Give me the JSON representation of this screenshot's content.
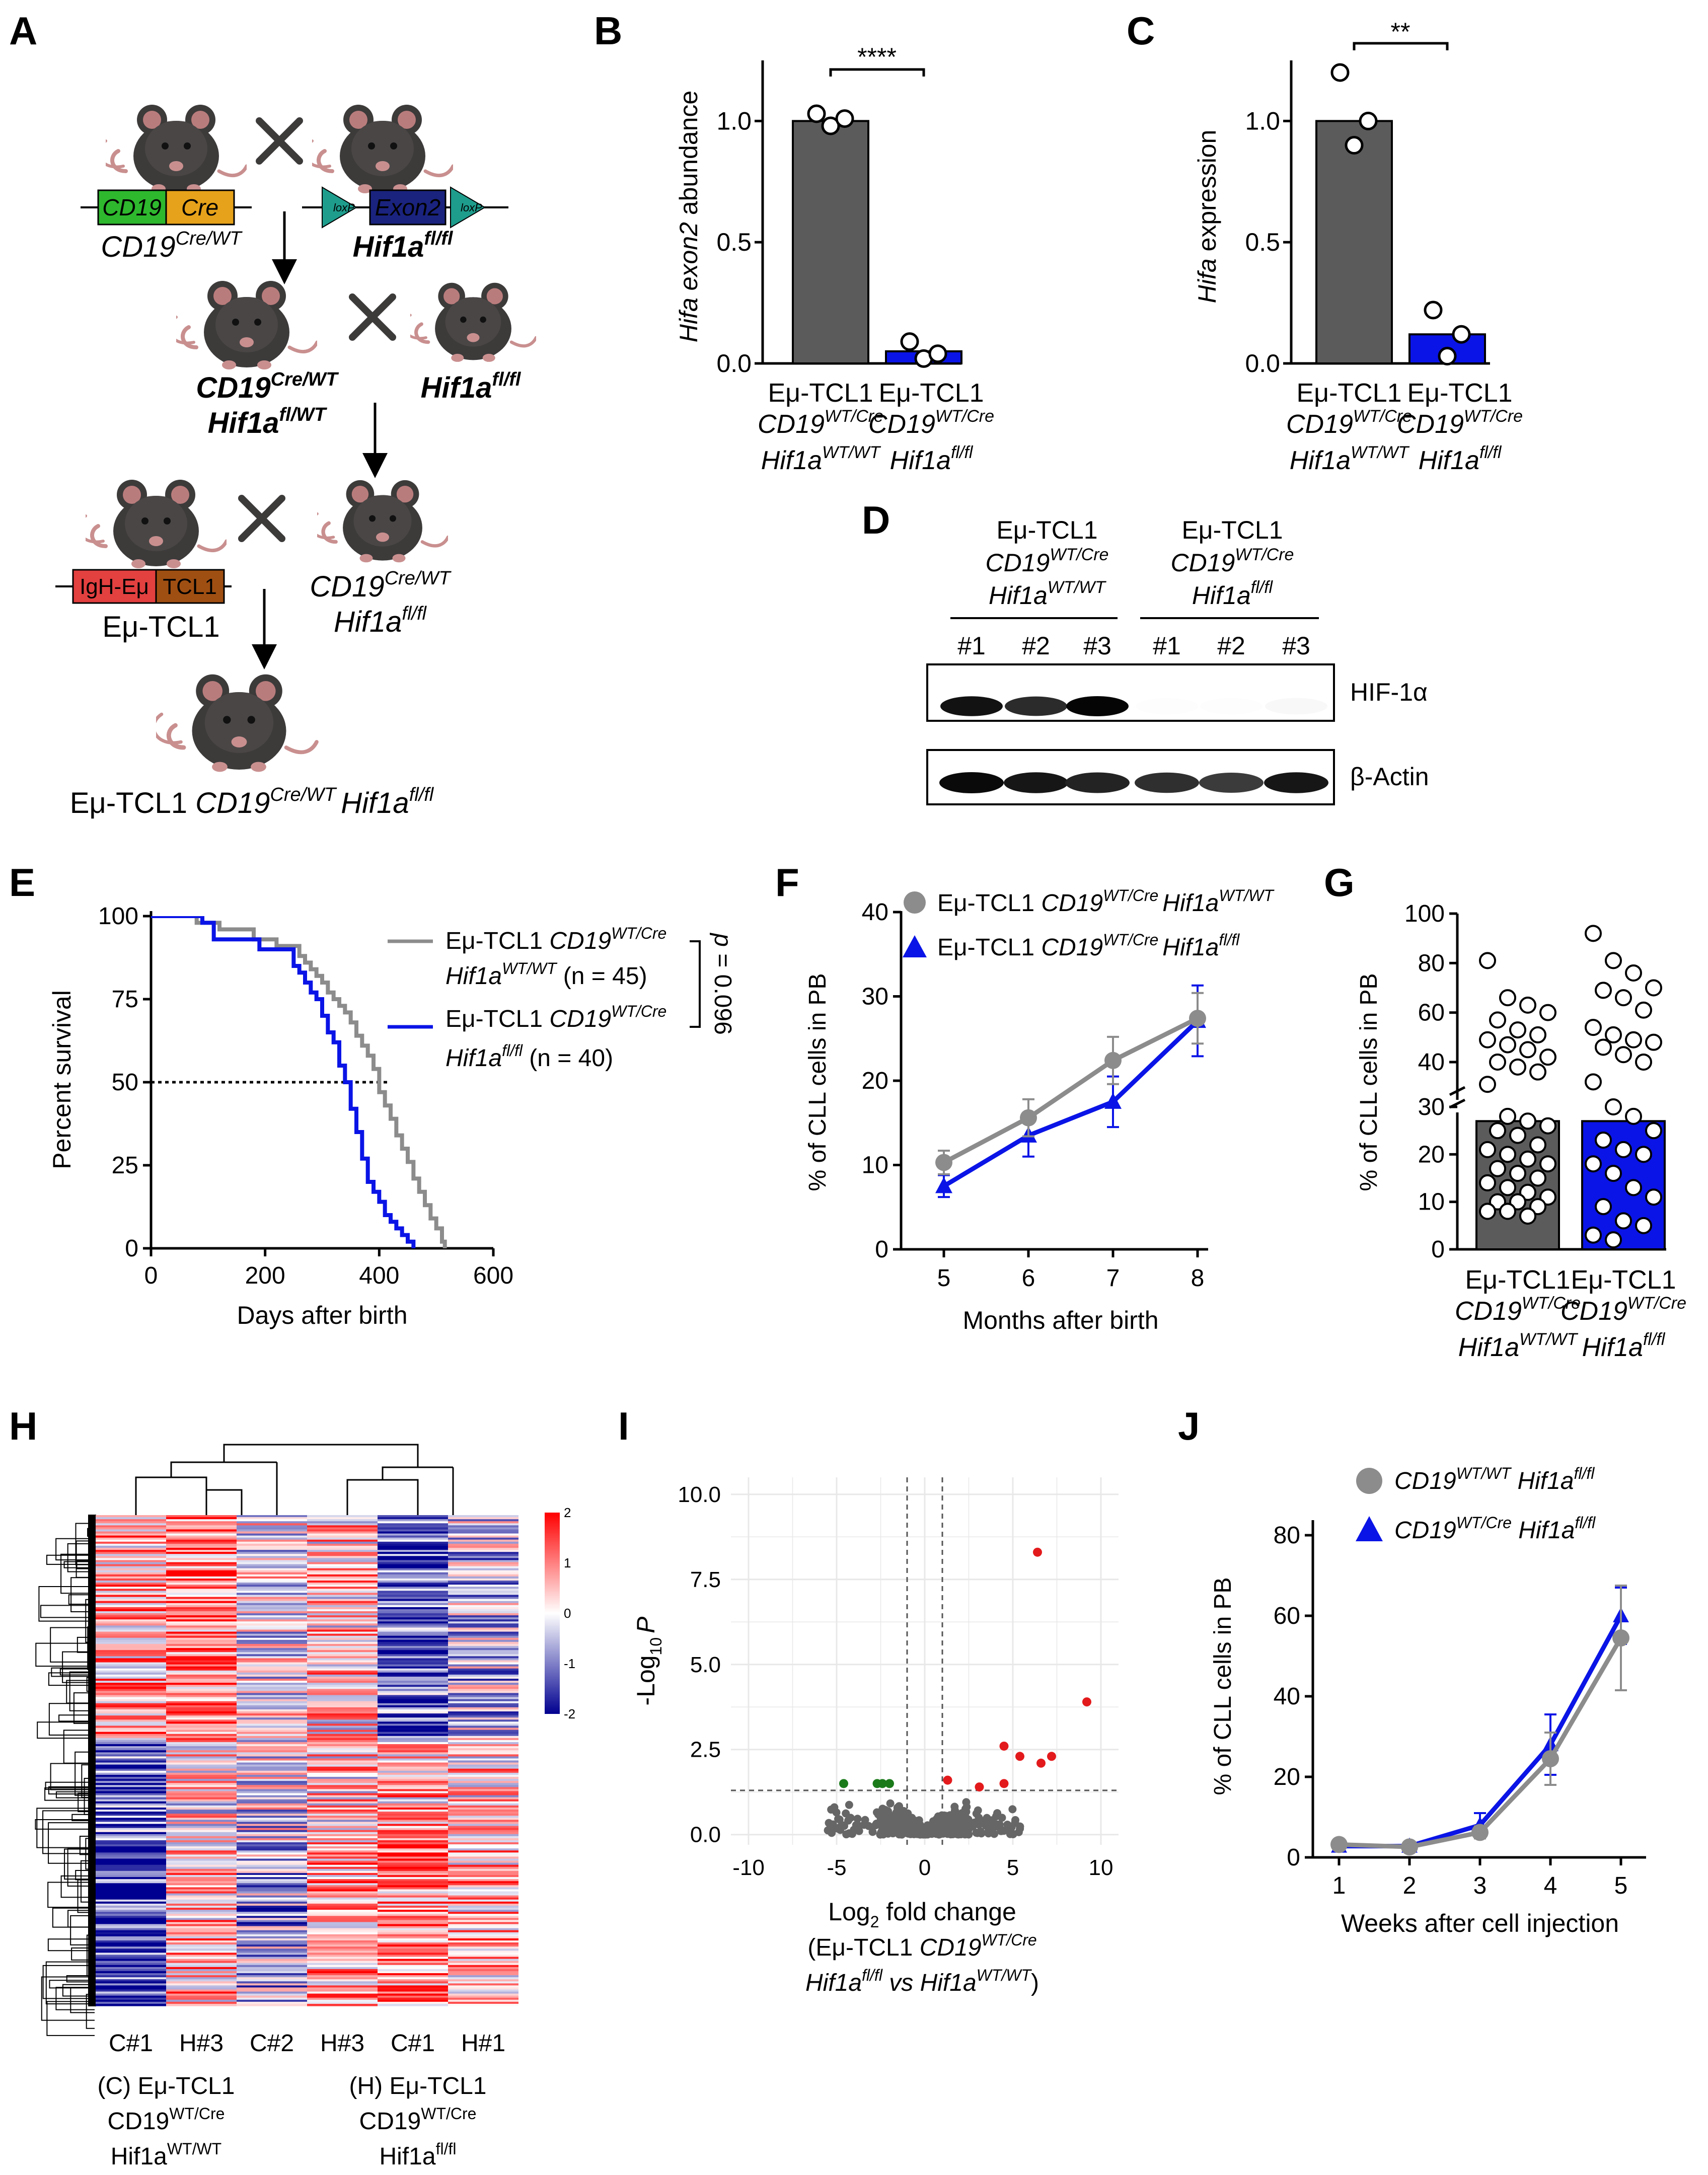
{
  "colors": {
    "wt_gray": "#8c8c8c",
    "ko_blue": "#0a14e6",
    "dark_bar": "#5b5b5b",
    "sig_red": "#e31a1c",
    "sig_green": "#1a7a1a",
    "mouse": "#3d3a3a"
  },
  "panel_letters": [
    "A",
    "B",
    "C",
    "D",
    "E",
    "F",
    "G",
    "H",
    "I",
    "J"
  ],
  "panelA": {
    "cd19_box": "CD19",
    "cre_box": "Cre",
    "loxp": "loxP",
    "exon2_box": "Exon2",
    "igh_box": "IgH-Eμ",
    "tcl1_box": "TCL1",
    "gen1_left_base": "CD19",
    "gen1_left_sup": "Cre/WT",
    "gen1_right_base": "Hif1a",
    "gen1_right_sup": "fl/fl",
    "gen2_left1_base": "CD19",
    "gen2_left1_sup": "Cre/WT",
    "gen2_left2_base": "Hif1a",
    "gen2_left2_sup": "fl/WT",
    "gen2_right_base": "Hif1a",
    "gen2_right_sup": "fl/fl",
    "gen3_left": "Eμ-TCL1",
    "gen3_right1_base": "CD19",
    "gen3_right1_sup": "Cre/WT",
    "gen3_right2_base": "Hif1a",
    "gen3_right2_sup": "fl/fl",
    "final_prefix": "Eμ-TCL1 ",
    "final_cd19": "CD19",
    "final_cd19_sup": "Cre/WT",
    "final_hif": "Hif1a",
    "final_hif_sup": "fl/fl"
  },
  "groups": {
    "tcl1": "Eμ-TCL1",
    "cd19": "CD19",
    "cd19_sup": "WT/Cre",
    "hif": "Hif1a",
    "wt_sup": "WT/WT",
    "ko_sup": "fl/fl"
  },
  "panelB": {
    "ylabel_italic": "Hifa exon2",
    "ylabel_rest": " abundance",
    "yticks": [
      "0.0",
      "0.5",
      "1.0"
    ],
    "sig": "****",
    "chart_data": {
      "type": "bar",
      "categories": [
        "Eμ-TCL1 CD19WT/Cre Hif1aWT/WT",
        "Eμ-TCL1 CD19WT/Cre Hif1afl/fl"
      ],
      "values": [
        1.0,
        0.05
      ],
      "points": [
        [
          1.03,
          0.98,
          1.01
        ],
        [
          0.09,
          0.02,
          0.04
        ]
      ],
      "ylim": [
        0,
        1.25
      ]
    }
  },
  "panelC": {
    "ylabel_italic": "Hifa",
    "ylabel_rest": " expression",
    "yticks": [
      "0.0",
      "0.5",
      "1.0"
    ],
    "sig": "**",
    "chart_data": {
      "type": "bar",
      "categories": [
        "Eμ-TCL1 CD19WT/Cre Hif1aWT/WT",
        "Eμ-TCL1 CD19WT/Cre Hif1afl/fl"
      ],
      "values": [
        1.0,
        0.12
      ],
      "points": [
        [
          1.2,
          0.9,
          1.0
        ],
        [
          0.22,
          0.03,
          0.12
        ]
      ],
      "ylim": [
        0,
        1.25
      ]
    }
  },
  "panelD": {
    "lanes": [
      "#1",
      "#2",
      "#3",
      "#1",
      "#2",
      "#3"
    ],
    "blot1_label": "HIF-1α",
    "blot2_label": "β-Actin",
    "hif_intensity": [
      0.95,
      0.85,
      1.0,
      0.03,
      0.02,
      0.08
    ],
    "actin_intensity": [
      1.0,
      0.95,
      0.9,
      0.85,
      0.8,
      0.95
    ]
  },
  "panelE": {
    "ylabel": "Percent survival",
    "xlabel": "Days after birth",
    "yticks": [
      "0",
      "25",
      "50",
      "75",
      "100"
    ],
    "xticks": [
      "0",
      "200",
      "400",
      "600"
    ],
    "legend1_prefix": "Eμ-TCL1 ",
    "legend1_cd19": "CD19",
    "legend1_cd19_sup": "WT/Cre",
    "legend1_hif": "Hif1a",
    "legend1_hif_sup": "WT/WT",
    "legend1_n": " (n = 45)",
    "legend2_prefix": "Eμ-TCL1 ",
    "legend2_cd19": "CD19",
    "legend2_cd19_sup": "WT/Cre",
    "legend2_hif": "Hif1a",
    "legend2_hif_sup": "fl/fl",
    "legend2_n": " (n = 40)",
    "pvalue_p": "p",
    "pvalue_rest": " = 0.096",
    "chart_data": {
      "type": "line",
      "xlim": [
        0,
        600
      ],
      "ylim": [
        0,
        100
      ],
      "series": [
        {
          "name": "Eμ-TCL1 CD19WT/Cre Hif1aWT/WT (n = 45)",
          "x": [
            0,
            80,
            120,
            150,
            180,
            200,
            220,
            240,
            260,
            270,
            280,
            290,
            300,
            310,
            320,
            330,
            340,
            350,
            360,
            370,
            380,
            390,
            400,
            410,
            420,
            430,
            440,
            450,
            460,
            470,
            480,
            490,
            500,
            510,
            515
          ],
          "y": [
            100,
            98,
            96,
            96,
            93,
            93,
            91,
            91,
            88,
            86,
            84,
            82,
            80,
            77,
            75,
            73,
            71,
            68,
            64,
            61,
            58,
            54,
            47,
            43,
            39,
            34,
            30,
            26,
            21,
            17,
            13,
            9,
            6,
            2,
            0
          ]
        },
        {
          "name": "Eμ-TCL1 CD19WT/Cre Hif1afl/fl (n = 40)",
          "x": [
            0,
            90,
            110,
            170,
            190,
            230,
            250,
            260,
            270,
            280,
            290,
            300,
            310,
            320,
            330,
            340,
            350,
            360,
            370,
            380,
            390,
            400,
            410,
            420,
            430,
            440,
            450,
            460
          ],
          "y": [
            100,
            98,
            93,
            93,
            90,
            90,
            85,
            83,
            80,
            77,
            75,
            70,
            65,
            62,
            55,
            50,
            42,
            35,
            27,
            20,
            17,
            14,
            10,
            8,
            6,
            4,
            2,
            0
          ]
        }
      ]
    }
  },
  "panelF": {
    "ylabel": "% of CLL cells in PB",
    "xlabel": "Months after birth",
    "yticks": [
      "0",
      "10",
      "20",
      "30",
      "40"
    ],
    "xticks": [
      "5",
      "6",
      "7",
      "8"
    ],
    "legend1_prefix": "Eμ-TCL1 ",
    "legend1_cd19": "CD19",
    "legend1_cd19_sup": "WT/Cre",
    "legend1_hif": "Hif1a",
    "legend1_hif_sup": "WT/WT",
    "legend2_prefix": "Eμ-TCL1 ",
    "legend2_cd19": "CD19",
    "legend2_cd19_sup": "WT/Cre",
    "legend2_hif": "Hif1a",
    "legend2_hif_sup": "fl/fl",
    "chart_data": {
      "type": "line",
      "x": [
        5,
        6,
        7,
        8
      ],
      "ylim": [
        0,
        40
      ],
      "series": [
        {
          "name": "Eμ-TCL1 CD19WT/Cre Hif1aWT/WT",
          "values": [
            10.3,
            15.6,
            22.4,
            27.4
          ],
          "err": [
            1.4,
            2.2,
            2.8,
            3.0
          ]
        },
        {
          "name": "Eμ-TCL1 CD19WT/Cre Hif1afl/fl",
          "values": [
            7.5,
            13.5,
            17.5,
            27.1
          ],
          "err": [
            1.3,
            2.5,
            3.0,
            4.2
          ]
        }
      ]
    }
  },
  "panelG": {
    "ylabel": "% of CLL cells in PB",
    "yticks_low": [
      "0",
      "10",
      "20",
      "30"
    ],
    "yticks_high": [
      "40",
      "60",
      "80",
      "100"
    ],
    "chart_data": {
      "type": "bar",
      "categories": [
        "Eμ-TCL1 CD19WT/Cre Hif1aWT/WT",
        "Eμ-TCL1 CD19WT/Cre Hif1afl/fl"
      ],
      "values": [
        27,
        27
      ],
      "points": [
        [
          81,
          66,
          63,
          60,
          57,
          53,
          51,
          49,
          47,
          45,
          42,
          40,
          38,
          36,
          31,
          28,
          27,
          26,
          25,
          24,
          22,
          21,
          20,
          19,
          18,
          17,
          16,
          15,
          14,
          13,
          12,
          11,
          10,
          10,
          9,
          8,
          8,
          7
        ],
        [
          92,
          81,
          76,
          70,
          69,
          66,
          61,
          54,
          51,
          49,
          48,
          46,
          43,
          40,
          32,
          30,
          28,
          25,
          23,
          21,
          20,
          18,
          16,
          13,
          11,
          9,
          6,
          5,
          3,
          2
        ]
      ],
      "ylim": [
        0,
        100
      ],
      "axis_break": [
        30,
        35
      ]
    }
  },
  "panelH": {
    "columns": [
      "C#1",
      "H#3",
      "C#2",
      "H#3",
      "C#1",
      "H#1"
    ],
    "scale_ticks": [
      "2",
      "1",
      "0",
      "-1",
      "-2"
    ],
    "groupC_prefix": "(C) Eμ-TCL1",
    "groupC_cd19": "CD19",
    "groupC_cd19_sup": "WT/Cre",
    "groupC_hif": "Hif1a",
    "groupC_hif_sup": "WT/WT",
    "groupH_prefix": "(H) Eμ-TCL1",
    "groupH_cd19": "CD19",
    "groupH_cd19_sup": "WT/Cre",
    "groupH_hif": "Hif1a",
    "groupH_hif_sup": "fl/fl",
    "chart_data": {
      "type": "heatmap",
      "columns": [
        "C#1",
        "H#3",
        "C#2",
        "H#3",
        "C#1",
        "H#1"
      ],
      "zlim": [
        -2,
        2
      ]
    }
  },
  "panelI": {
    "ylabel_pre": "-Log",
    "ylabel_sub": "10",
    "ylabel_p": "P",
    "xlabel_pre": "Log",
    "xlabel_sub": "2",
    "xlabel_rest": " fold change",
    "xlabel2_pre": "(Eμ-TCL1 ",
    "xlabel2_cd19": "CD19",
    "xlabel2_cd19_sup": "WT/Cre",
    "xlabel3_hif": "Hif1a",
    "xlabel3_hif_sup": "fl/fl",
    "xlabel3_vs": " vs ",
    "xlabel3_hif2": "Hif1a",
    "xlabel3_hif2_sup": "WT/WT",
    "xlabel3_close": ")",
    "yticks": [
      "0.0",
      "2.5",
      "5.0",
      "7.5",
      "10.0"
    ],
    "xticks": [
      "-10",
      "-5",
      "0",
      "5",
      "10"
    ],
    "chart_data": {
      "type": "scatter",
      "xlim": [
        -11,
        11
      ],
      "ylim": [
        -0.3,
        10.5
      ],
      "thresholds": {
        "x": [
          -1,
          1
        ],
        "y": 1.3
      },
      "red_points": [
        [
          6.4,
          8.3
        ],
        [
          9.2,
          3.9
        ],
        [
          4.5,
          2.6
        ],
        [
          5.4,
          2.3
        ],
        [
          6.6,
          2.1
        ],
        [
          7.2,
          2.3
        ],
        [
          1.3,
          1.6
        ],
        [
          3.1,
          1.4
        ],
        [
          4.5,
          1.5
        ]
      ],
      "green_points": [
        [
          -4.6,
          1.5
        ],
        [
          -2.7,
          1.5
        ],
        [
          -2.4,
          1.5
        ],
        [
          -2.0,
          1.5
        ]
      ]
    }
  },
  "panelJ": {
    "ylabel": "% of CLL cells in PB",
    "xlabel": "Weeks after cell injection",
    "yticks": [
      "0",
      "20",
      "40",
      "60",
      "80"
    ],
    "xticks": [
      "1",
      "2",
      "3",
      "4",
      "5"
    ],
    "legend1_cd19": "CD19",
    "legend1_cd19_sup": "WT/WT",
    "legend1_hif": " Hif1a",
    "legend1_hif_sup": "fl/fl",
    "legend2_cd19": "CD19",
    "legend2_cd19_sup": "WT/Cre",
    "legend2_hif": " Hif1a",
    "legend2_hif_sup": "fl/fl",
    "chart_data": {
      "type": "line",
      "x": [
        1,
        2,
        3,
        4,
        5
      ],
      "ylim": [
        0,
        80
      ],
      "series": [
        {
          "name": "CD19WT/WT Hif1afl/fl",
          "values": [
            3.2,
            2.6,
            6.2,
            24.5,
            54.5
          ],
          "err": [
            0.8,
            0.6,
            1.5,
            6.5,
            13
          ]
        },
        {
          "name": "CD19WT/Cre Hif1afl/fl",
          "values": [
            2.8,
            2.8,
            8.0,
            28.0,
            60.0
          ],
          "err": [
            0.8,
            0.6,
            3.0,
            7.5,
            7.0
          ]
        }
      ]
    }
  }
}
